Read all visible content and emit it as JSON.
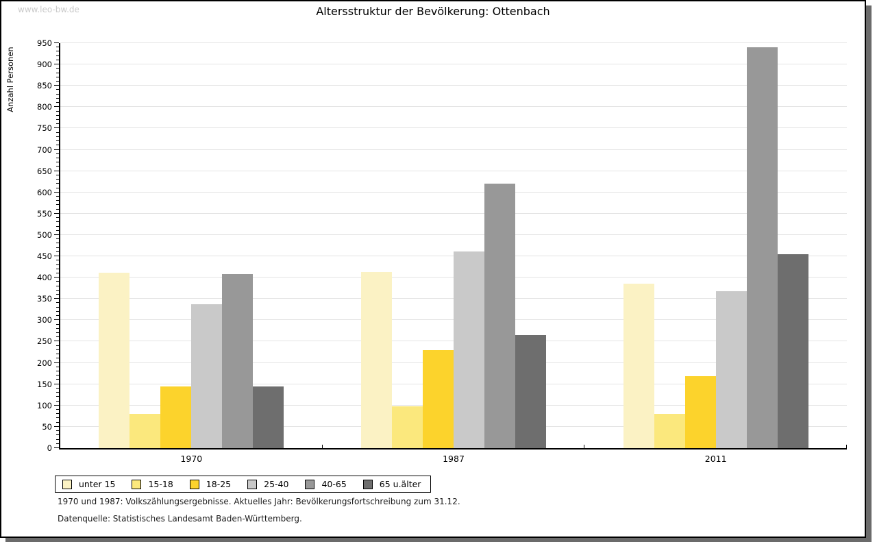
{
  "watermark": "www.leo-bw.de",
  "title": "Altersstruktur der Bevölkerung: Ottenbach",
  "chart_data": {
    "type": "bar",
    "title": "Altersstruktur der Bevölkerung: Ottenbach",
    "xlabel": "",
    "ylabel": "Anzahl Personen",
    "ylim": [
      0,
      950
    ],
    "ytick_step": 50,
    "ytick_minor_step": 10,
    "grid": true,
    "legend_position": "bottom-left",
    "categories": [
      "1970",
      "1987",
      "2011"
    ],
    "series": [
      {
        "name": "unter 15",
        "color": "#fbf2c4",
        "values": [
          412,
          413,
          385
        ]
      },
      {
        "name": "15-18",
        "color": "#fbe87d",
        "values": [
          80,
          98,
          80
        ]
      },
      {
        "name": "18-25",
        "color": "#fcd32c",
        "values": [
          145,
          230,
          168
        ]
      },
      {
        "name": "25-40",
        "color": "#c9c9c9",
        "values": [
          337,
          462,
          368
        ]
      },
      {
        "name": "40-65",
        "color": "#989898",
        "values": [
          409,
          620,
          940
        ]
      },
      {
        "name": "65 u.älter",
        "color": "#6e6e6e",
        "values": [
          145,
          265,
          455
        ]
      }
    ],
    "colors": {
      "gridline": "#e3e3e3",
      "axis": "#000000",
      "frame_shadow": "#6b6b6b",
      "watermark": "#c9c9c9"
    }
  },
  "footnotes": [
    "1970 und 1987: Volkszählungsergebnisse. Aktuelles Jahr: Bevölkerungsfortschreibung zum 31.12.",
    "Datenquelle: Statistisches Landesamt Baden-Württemberg."
  ]
}
